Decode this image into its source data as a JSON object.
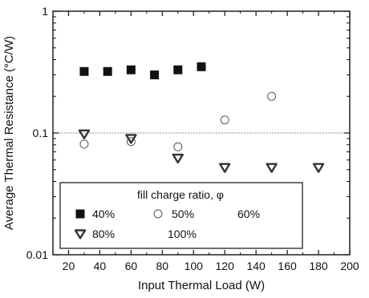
{
  "chart_data": {
    "type": "scatter",
    "xlabel": "Input Thermal Load (W)",
    "ylabel": "Average Thermal Resistance (°C/W)",
    "xlim": [
      10,
      200
    ],
    "ylim": [
      0.01,
      1
    ],
    "yscale": "log",
    "x_ticks": [
      20,
      40,
      60,
      80,
      100,
      120,
      140,
      160,
      180,
      200
    ],
    "y_ticks": [
      {
        "value": 0.01,
        "label": "0.01"
      },
      {
        "value": 0.1,
        "label": "0.1"
      },
      {
        "value": 1,
        "label": "1"
      }
    ],
    "reference_line": 0.1,
    "legend": {
      "title": "fill charge ratio, φ",
      "placement": "bottom-left"
    },
    "series": [
      {
        "name": "40%",
        "marker": "filled-square",
        "color": "#111111",
        "x": [
          30,
          45,
          60,
          75,
          90,
          105
        ],
        "y": [
          0.32,
          0.32,
          0.33,
          0.3,
          0.33,
          0.35
        ]
      },
      {
        "name": "50%",
        "marker": "open-circle",
        "color": "#555555",
        "x": [
          30,
          60,
          90,
          120,
          150
        ],
        "y": [
          0.081,
          0.085,
          0.077,
          0.128,
          0.2
        ]
      },
      {
        "name": "60%",
        "marker": "none",
        "color": "#111111",
        "x": [],
        "y": []
      },
      {
        "name": "80%",
        "marker": "down-triangle",
        "color": "#333333",
        "x": [
          30,
          60,
          90,
          120,
          150,
          180
        ],
        "y": [
          0.098,
          0.09,
          0.062,
          0.052,
          0.052,
          0.052
        ]
      },
      {
        "name": "100%",
        "marker": "none",
        "color": "#111111",
        "x": [],
        "y": []
      }
    ]
  }
}
